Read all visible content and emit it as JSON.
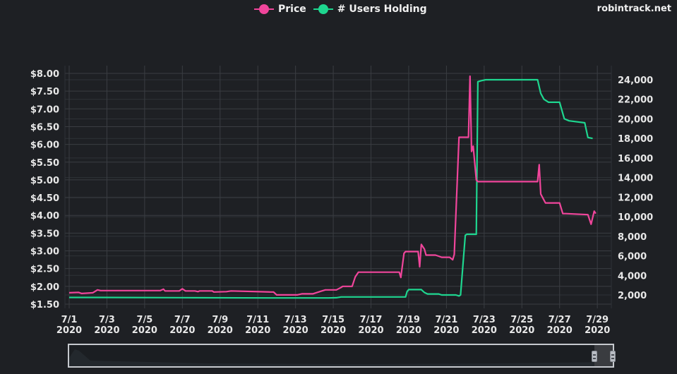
{
  "legend": {
    "items": [
      {
        "label": "Price",
        "color": "#f0459b"
      },
      {
        "label": "# Users Holding",
        "color": "#1ed68f"
      }
    ]
  },
  "brand": "robintrack.net",
  "colors": {
    "background": "#1e2024",
    "grid": "#3a3d42",
    "price": "#f0459b",
    "users": "#1ed68f",
    "text": "#e8e8e8"
  },
  "axes": {
    "left": [
      "$8.00",
      "$7.50",
      "$7.00",
      "$6.50",
      "$6.00",
      "$5.50",
      "$5.00",
      "$4.50",
      "$4.00",
      "$3.50",
      "$3.00",
      "$2.50",
      "$2.00",
      "$1.50"
    ],
    "right": [
      "24,000",
      "22,000",
      "20,000",
      "18,000",
      "16,000",
      "14,000",
      "12,000",
      "10,000",
      "8,000",
      "6,000",
      "4,000",
      "2,000"
    ],
    "x": [
      {
        "date": "7/1",
        "year": "2020"
      },
      {
        "date": "7/3",
        "year": "2020"
      },
      {
        "date": "7/5",
        "year": "2020"
      },
      {
        "date": "7/7",
        "year": "2020"
      },
      {
        "date": "7/9",
        "year": "2020"
      },
      {
        "date": "7/11",
        "year": "2020"
      },
      {
        "date": "7/13",
        "year": "2020"
      },
      {
        "date": "7/15",
        "year": "2020"
      },
      {
        "date": "7/17",
        "year": "2020"
      },
      {
        "date": "7/19",
        "year": "2020"
      },
      {
        "date": "7/21",
        "year": "2020"
      },
      {
        "date": "7/23",
        "year": "2020"
      },
      {
        "date": "7/25",
        "year": "2020"
      },
      {
        "date": "7/27",
        "year": "2020"
      },
      {
        "date": "7/29",
        "year": "2020"
      }
    ]
  },
  "chart_data": {
    "type": "line",
    "title": "",
    "xlabel": "",
    "ylabel_left": "Price",
    "ylabel_right": "# Users Holding",
    "ylim_left": [
      1.5,
      8.0
    ],
    "ylim_right": [
      1600,
      24700
    ],
    "grid": true,
    "legend_position": "top-center",
    "x": [
      "7/1",
      "7/2",
      "7/3",
      "7/4",
      "7/5",
      "7/6",
      "7/7",
      "7/8",
      "7/9",
      "7/10",
      "7/11",
      "7/12",
      "7/13",
      "7/14",
      "7/15",
      "7/16",
      "7/17",
      "7/18",
      "7/19",
      "7/20",
      "7/21",
      "7/22",
      "7/23",
      "7/24",
      "7/24.5",
      "7/25",
      "7/26",
      "7/27",
      "7/27.5",
      "7/28",
      "7/29",
      "7/29.7"
    ],
    "series": [
      {
        "name": "Price",
        "axis": "left",
        "points": [
          [
            0.0,
            1.82
          ],
          [
            0.6,
            1.83
          ],
          [
            0.8,
            1.8
          ],
          [
            1.5,
            1.82
          ],
          [
            1.8,
            1.9
          ],
          [
            2.0,
            1.88
          ],
          [
            5.8,
            1.88
          ],
          [
            6.0,
            1.92
          ],
          [
            6.1,
            1.87
          ],
          [
            7.0,
            1.87
          ],
          [
            7.2,
            1.93
          ],
          [
            7.4,
            1.87
          ],
          [
            8.0,
            1.87
          ],
          [
            8.2,
            1.85
          ],
          [
            8.3,
            1.87
          ],
          [
            9.1,
            1.87
          ],
          [
            9.2,
            1.84
          ],
          [
            10.0,
            1.85
          ],
          [
            10.3,
            1.87
          ],
          [
            12.8,
            1.84
          ],
          [
            13.0,
            1.84
          ],
          [
            13.2,
            1.76
          ],
          [
            13.5,
            1.76
          ],
          [
            14.5,
            1.76
          ],
          [
            14.8,
            1.79
          ],
          [
            15.5,
            1.79
          ],
          [
            16.0,
            1.86
          ],
          [
            16.3,
            1.9
          ],
          [
            17.0,
            1.9
          ],
          [
            17.3,
            1.97
          ],
          [
            17.4,
            2.0
          ],
          [
            17.6,
            2.0
          ],
          [
            18.0,
            2.0
          ],
          [
            18.2,
            2.27
          ],
          [
            18.4,
            2.4
          ],
          [
            21.0,
            2.4
          ],
          [
            21.1,
            2.25
          ],
          [
            21.3,
            2.93
          ],
          [
            21.4,
            2.98
          ],
          [
            22.2,
            2.98
          ],
          [
            22.3,
            2.55
          ],
          [
            22.4,
            3.18
          ],
          [
            22.6,
            3.05
          ],
          [
            22.7,
            2.88
          ],
          [
            23.3,
            2.88
          ],
          [
            23.5,
            2.85
          ],
          [
            23.7,
            2.82
          ],
          [
            24.2,
            2.82
          ],
          [
            24.4,
            2.75
          ],
          [
            24.5,
            2.9
          ],
          [
            24.8,
            6.2
          ],
          [
            25.4,
            6.2
          ],
          [
            25.5,
            7.92
          ],
          [
            25.6,
            5.8
          ],
          [
            25.7,
            5.95
          ],
          [
            25.9,
            5.0
          ],
          [
            26.0,
            4.95
          ],
          [
            29.8,
            4.95
          ],
          [
            29.9,
            5.43
          ],
          [
            30.0,
            4.6
          ],
          [
            30.3,
            4.35
          ],
          [
            31.2,
            4.35
          ],
          [
            31.4,
            4.05
          ],
          [
            31.6,
            4.05
          ],
          [
            33.0,
            4.02
          ],
          [
            33.2,
            3.75
          ],
          [
            33.4,
            4.12
          ],
          [
            33.5,
            4.05
          ]
        ]
      },
      {
        "name": "# Users Holding",
        "axis": "right",
        "points": [
          [
            0.0,
            1750
          ],
          [
            2.0,
            1750
          ],
          [
            8.0,
            1720
          ],
          [
            13.0,
            1700
          ],
          [
            16.5,
            1700
          ],
          [
            17.0,
            1720
          ],
          [
            17.3,
            1800
          ],
          [
            17.5,
            1800
          ],
          [
            21.4,
            1800
          ],
          [
            21.5,
            2350
          ],
          [
            21.6,
            2550
          ],
          [
            22.4,
            2550
          ],
          [
            22.6,
            2250
          ],
          [
            22.8,
            2100
          ],
          [
            23.5,
            2100
          ],
          [
            23.7,
            2000
          ],
          [
            24.6,
            2000
          ],
          [
            24.8,
            1900
          ],
          [
            24.9,
            2000
          ],
          [
            25.2,
            8100
          ],
          [
            25.3,
            8200
          ],
          [
            25.9,
            8200
          ],
          [
            26.0,
            23800
          ],
          [
            26.2,
            23900
          ],
          [
            26.5,
            24000
          ],
          [
            29.8,
            24000
          ],
          [
            30.0,
            22600
          ],
          [
            30.2,
            22000
          ],
          [
            30.5,
            21700
          ],
          [
            31.2,
            21700
          ],
          [
            31.5,
            20000
          ],
          [
            31.8,
            19800
          ],
          [
            32.8,
            19600
          ],
          [
            33.0,
            18100
          ],
          [
            33.3,
            18000
          ]
        ]
      }
    ]
  },
  "navigator": {
    "selected_range_label": "last portion",
    "left_handle": "range-start",
    "right_handle": "range-end"
  }
}
